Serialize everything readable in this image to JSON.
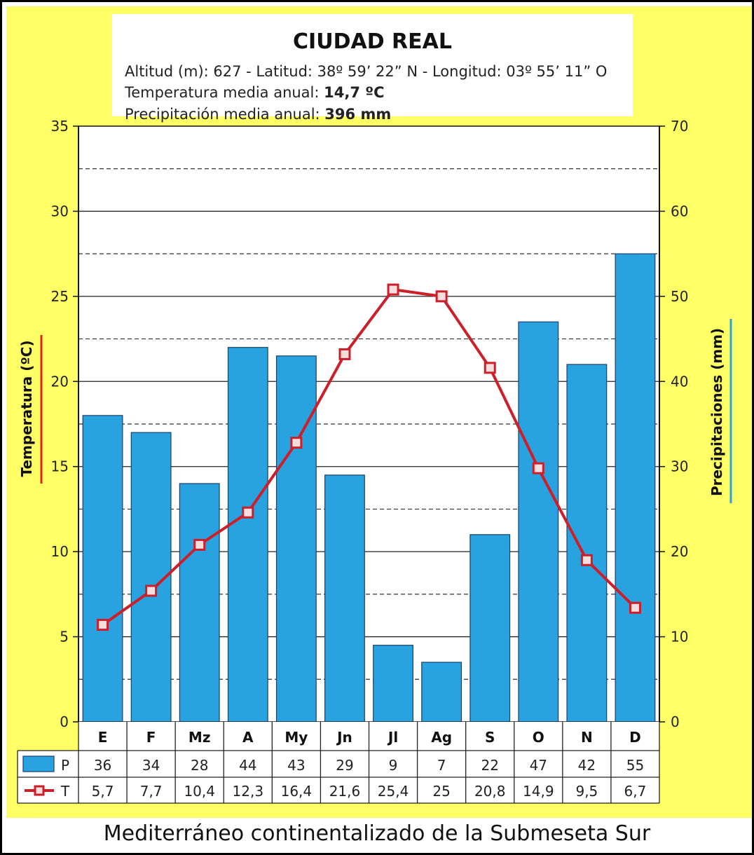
{
  "header": {
    "title": "CIUDAD REAL",
    "location_line": "Altitud (m): 627 - Latitud: 38º 59’ 22” N - Longitud: 03º 55’ 11” O",
    "temp_label": "Temperatura media anual:",
    "temp_value": "14,7 ºC",
    "precip_label": "Precipitación media anual:",
    "precip_value": "396 mm"
  },
  "footer": {
    "caption": "Mediterráneo continentalizado de la Submeseta Sur"
  },
  "colors": {
    "background": "#ffff66",
    "bar_fill": "#29a3df",
    "line_color": "#cc1f2a",
    "temp_axis_accent": "#e2231a",
    "precip_axis_accent": "#29a3df"
  },
  "chart_data": {
    "type": "bar",
    "categories": [
      "E",
      "F",
      "Mz",
      "A",
      "My",
      "Jn",
      "Jl",
      "Ag",
      "S",
      "O",
      "N",
      "D"
    ],
    "series": [
      {
        "name": "P",
        "type": "bar",
        "axis": "right",
        "values": [
          36,
          34,
          28,
          44,
          43,
          29,
          9,
          7,
          22,
          47,
          42,
          55
        ],
        "labels": [
          "36",
          "34",
          "28",
          "44",
          "43",
          "29",
          "9",
          "7",
          "22",
          "47",
          "42",
          "55"
        ]
      },
      {
        "name": "T",
        "type": "line",
        "axis": "left",
        "values": [
          5.7,
          7.7,
          10.4,
          12.3,
          16.4,
          21.6,
          25.4,
          25,
          20.8,
          14.9,
          9.5,
          6.7
        ],
        "labels": [
          "5,7",
          "7,7",
          "10,4",
          "12,3",
          "16,4",
          "21,6",
          "25,4",
          "25",
          "20,8",
          "14,9",
          "9,5",
          "6,7"
        ]
      }
    ],
    "ylabel_left": "Temperatura (ºC)",
    "ylabel_right": "Precipitaciones (mm)",
    "ylim_left": [
      0,
      35
    ],
    "ylim_right": [
      0,
      70
    ],
    "yticks_left": [
      "0",
      "5",
      "10",
      "15",
      "20",
      "25",
      "30",
      "35"
    ],
    "yticks_right": [
      "0",
      "10",
      "20",
      "30",
      "40",
      "50",
      "60",
      "70"
    ],
    "grid": true,
    "legend": "table-below"
  }
}
